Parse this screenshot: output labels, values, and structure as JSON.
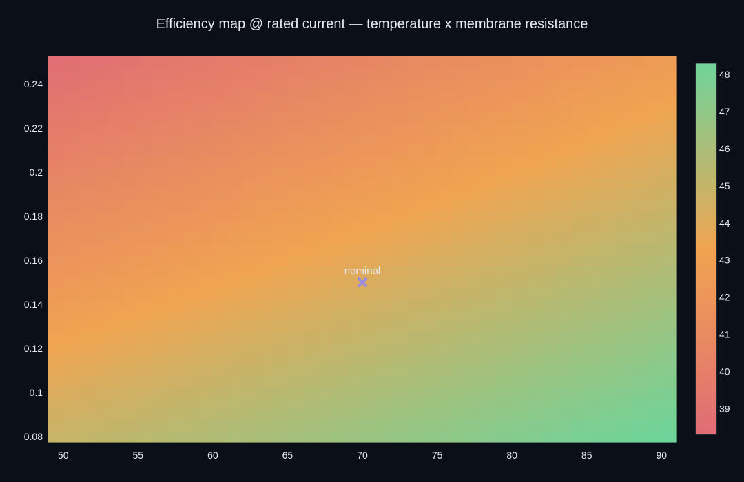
{
  "chart_data": {
    "type": "heatmap",
    "title": "Efficiency map @ rated current — temperature x membrane resistance",
    "xlabel": "",
    "ylabel": "",
    "x_range": [
      49,
      91
    ],
    "y_range": [
      0.0775,
      0.2525
    ],
    "x_ticks": [
      50,
      55,
      60,
      65,
      70,
      75,
      80,
      85,
      90
    ],
    "y_ticks": [
      0.08,
      0.1,
      0.12,
      0.14,
      0.16,
      0.18,
      0.2,
      0.22,
      0.24
    ],
    "x_tick_labels": [
      "50",
      "55",
      "60",
      "65",
      "70",
      "75",
      "80",
      "85",
      "90"
    ],
    "y_tick_labels": [
      "0.08",
      "0.1",
      "0.12",
      "0.14",
      "0.16",
      "0.18",
      "0.2",
      "0.22",
      "0.24"
    ],
    "z_min": 38.3,
    "z_max": 48.3,
    "z_corners": {
      "x50_y0.08": 44.9,
      "x90_y0.08": 48.3,
      "x50_y0.25": 38.6,
      "x90_y0.25": 42.6
    },
    "colorscale": [
      "#e06c75",
      "#f0a451",
      "#6fd49a"
    ],
    "colorbar": {
      "ticks": [
        39,
        40,
        41,
        42,
        43,
        44,
        45,
        46,
        47,
        48
      ],
      "tick_labels": [
        "39",
        "40",
        "41",
        "42",
        "43",
        "44",
        "45",
        "46",
        "47",
        "48"
      ],
      "range": [
        38.3,
        48.3
      ]
    },
    "marker": {
      "x": 70,
      "y": 0.15,
      "symbol": "x",
      "color": "#9b8ce0",
      "label": "nominal"
    },
    "grid": false,
    "legend": "none"
  }
}
